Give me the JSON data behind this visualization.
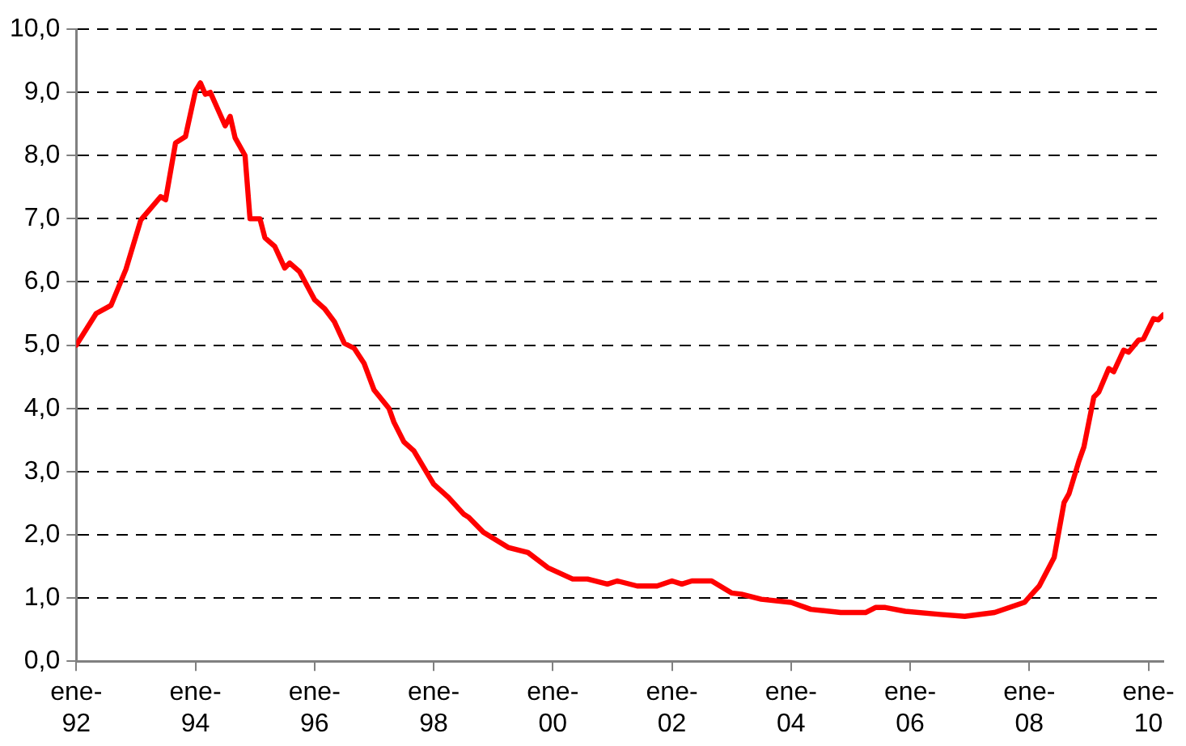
{
  "chart_data": {
    "type": "line",
    "x": [
      "1992-01",
      "1992-05",
      "1992-08",
      "1992-11",
      "1993-02",
      "1993-06",
      "1993-07",
      "1993-09",
      "1993-11",
      "1994-01",
      "1994-02",
      "1994-03",
      "1994-04",
      "1994-07",
      "1994-08",
      "1994-09",
      "1994-11",
      "1994-12",
      "1995-02",
      "1995-03",
      "1995-05",
      "1995-07",
      "1995-08",
      "1995-10",
      "1996-01",
      "1996-03",
      "1996-05",
      "1996-07",
      "1996-09",
      "1996-11",
      "1997-01",
      "1997-04",
      "1997-05",
      "1997-07",
      "1997-09",
      "1998-01",
      "1998-04",
      "1998-07",
      "1998-08",
      "1998-11",
      "1999-04",
      "1999-08",
      "1999-12",
      "2000-05",
      "2000-08",
      "2000-12",
      "2001-02",
      "2001-06",
      "2001-10",
      "2002-01",
      "2002-03",
      "2002-05",
      "2002-09",
      "2003-01",
      "2003-03",
      "2003-07",
      "2004-01",
      "2004-05",
      "2004-11",
      "2005-04",
      "2005-06",
      "2005-08",
      "2005-12",
      "2006-07",
      "2006-12",
      "2007-06",
      "2007-12",
      "2008-03",
      "2008-06",
      "2008-08",
      "2008-09",
      "2008-11",
      "2008-12",
      "2009-02",
      "2009-03",
      "2009-05",
      "2009-06",
      "2009-08",
      "2009-09",
      "2009-11",
      "2009-12",
      "2010-02",
      "2010-03",
      "2010-04"
    ],
    "series": [
      {
        "color": "#ff0000",
        "values": [
          5.0,
          5.5,
          5.63,
          6.2,
          6.98,
          7.35,
          7.3,
          8.2,
          8.3,
          9.02,
          9.15,
          8.97,
          9.0,
          8.47,
          8.62,
          8.28,
          8.0,
          7.0,
          7.0,
          6.7,
          6.56,
          6.22,
          6.3,
          6.16,
          5.72,
          5.58,
          5.37,
          5.03,
          4.95,
          4.71,
          4.29,
          4.0,
          3.78,
          3.47,
          3.33,
          2.8,
          2.59,
          2.33,
          2.28,
          2.04,
          1.8,
          1.72,
          1.48,
          1.3,
          1.3,
          1.22,
          1.27,
          1.19,
          1.19,
          1.27,
          1.22,
          1.27,
          1.27,
          1.08,
          1.06,
          0.98,
          0.93,
          0.82,
          0.77,
          0.77,
          0.85,
          0.85,
          0.79,
          0.74,
          0.71,
          0.77,
          0.93,
          1.19,
          1.64,
          2.51,
          2.65,
          3.17,
          3.39,
          4.18,
          4.26,
          4.63,
          4.58,
          4.92,
          4.89,
          5.08,
          5.1,
          5.42,
          5.4,
          5.48
        ]
      }
    ],
    "xlim": [
      "1992-01",
      "2010-04"
    ],
    "xticks": [
      {
        "value": "1992-01",
        "label": "ene-92"
      },
      {
        "value": "1994-01",
        "label": "ene-94"
      },
      {
        "value": "1996-01",
        "label": "ene-96"
      },
      {
        "value": "1998-01",
        "label": "ene-98"
      },
      {
        "value": "2000-01",
        "label": "ene-00"
      },
      {
        "value": "2002-01",
        "label": "ene-02"
      },
      {
        "value": "2004-01",
        "label": "ene-04"
      },
      {
        "value": "2006-01",
        "label": "ene-06"
      },
      {
        "value": "2008-01",
        "label": "ene-08"
      },
      {
        "value": "2010-01",
        "label": "ene-10"
      }
    ],
    "ylim": [
      0,
      10
    ],
    "yticks": [
      {
        "value": 0,
        "label": "0,0"
      },
      {
        "value": 1,
        "label": "1,0"
      },
      {
        "value": 2,
        "label": "2,0"
      },
      {
        "value": 3,
        "label": "3,0"
      },
      {
        "value": 4,
        "label": "4,0"
      },
      {
        "value": 5,
        "label": "5,0"
      },
      {
        "value": 6,
        "label": "6,0"
      },
      {
        "value": 7,
        "label": "7,0"
      },
      {
        "value": 8,
        "label": "8,0"
      },
      {
        "value": 9,
        "label": "9,0"
      },
      {
        "value": 10,
        "label": "10,0"
      }
    ],
    "grid": "y",
    "legend": false,
    "marker": "none",
    "line_style": "solid"
  }
}
